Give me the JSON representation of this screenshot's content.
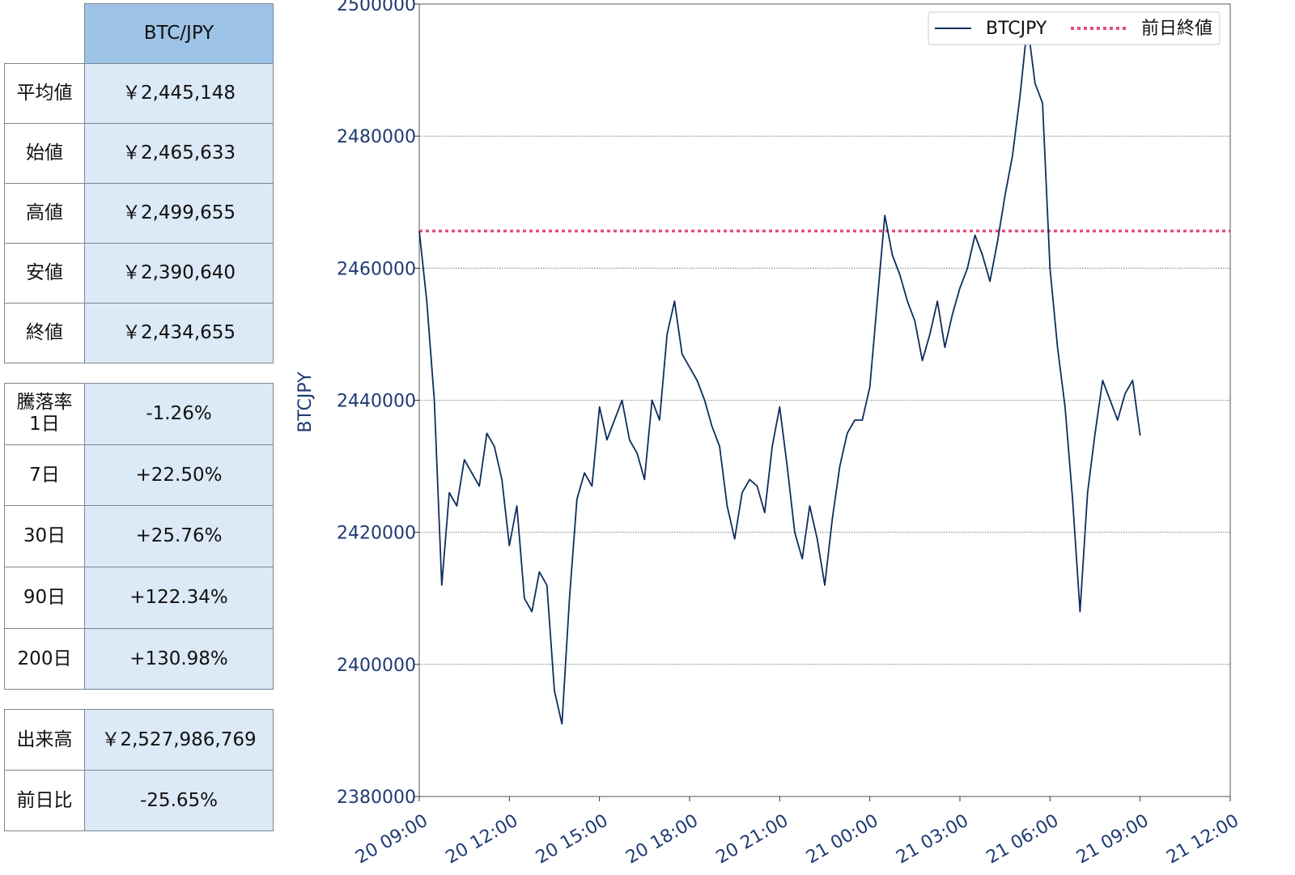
{
  "table_summary": {
    "header": "BTC/JPY",
    "rows": [
      {
        "label": "平均値",
        "value": "￥2,445,148"
      },
      {
        "label": "始値",
        "value": "￥2,465,633"
      },
      {
        "label": "高値",
        "value": "￥2,499,655"
      },
      {
        "label": "安値",
        "value": "￥2,390,640"
      },
      {
        "label": "終値",
        "value": "￥2,434,655"
      }
    ]
  },
  "table_change": {
    "rows": [
      {
        "label_line1": "騰落率",
        "label_line2": "1日",
        "value": "-1.26%"
      },
      {
        "label": "7日",
        "value": "+22.50%"
      },
      {
        "label": "30日",
        "value": "+25.76%"
      },
      {
        "label": "90日",
        "value": "+122.34%"
      },
      {
        "label": "200日",
        "value": "+130.98%"
      }
    ]
  },
  "table_volume": {
    "rows": [
      {
        "label": "出来高",
        "value": "￥2,527,986,769"
      },
      {
        "label": "前日比",
        "value": "-25.65%"
      }
    ]
  },
  "chart_data": {
    "type": "line",
    "title": "",
    "xlabel": "",
    "ylabel": "BTCJPY",
    "xlim": [
      "20 09:00",
      "21 12:00"
    ],
    "ylim": [
      2380000,
      2500000
    ],
    "yticks": [
      2380000,
      2400000,
      2420000,
      2440000,
      2460000,
      2480000,
      2500000
    ],
    "xticks": [
      "20 09:00",
      "20 12:00",
      "20 15:00",
      "20 18:00",
      "20 21:00",
      "21 00:00",
      "21 03:00",
      "21 06:00",
      "21 09:00",
      "21 12:00"
    ],
    "grid": "horizontal",
    "legend_position": "top-right",
    "axis_color": "#1f3b73",
    "series": [
      {
        "name": "BTCJPY",
        "color": "#0d2e5c",
        "x": [
          "20 09:00",
          "20 09:15",
          "20 09:30",
          "20 09:45",
          "20 10:00",
          "20 10:15",
          "20 10:30",
          "20 10:45",
          "20 11:00",
          "20 11:15",
          "20 11:30",
          "20 11:45",
          "20 12:00",
          "20 12:15",
          "20 12:30",
          "20 12:45",
          "20 13:00",
          "20 13:15",
          "20 13:30",
          "20 13:45",
          "20 14:00",
          "20 14:15",
          "20 14:30",
          "20 14:45",
          "20 15:00",
          "20 15:15",
          "20 15:30",
          "20 15:45",
          "20 16:00",
          "20 16:15",
          "20 16:30",
          "20 16:45",
          "20 17:00",
          "20 17:15",
          "20 17:30",
          "20 17:45",
          "20 18:00",
          "20 18:15",
          "20 18:30",
          "20 18:45",
          "20 19:00",
          "20 19:15",
          "20 19:30",
          "20 19:45",
          "20 20:00",
          "20 20:15",
          "20 20:30",
          "20 20:45",
          "20 21:00",
          "20 21:15",
          "20 21:30",
          "20 21:45",
          "20 22:00",
          "20 22:15",
          "20 22:30",
          "20 22:45",
          "20 23:00",
          "20 23:15",
          "20 23:30",
          "20 23:45",
          "21 00:00",
          "21 00:15",
          "21 00:30",
          "21 00:45",
          "21 01:00",
          "21 01:15",
          "21 01:30",
          "21 01:45",
          "21 02:00",
          "21 02:15",
          "21 02:30",
          "21 02:45",
          "21 03:00",
          "21 03:15",
          "21 03:30",
          "21 03:45",
          "21 04:00",
          "21 04:15",
          "21 04:30",
          "21 04:45",
          "21 05:00",
          "21 05:15",
          "21 05:30",
          "21 05:45",
          "21 06:00",
          "21 06:15",
          "21 06:30",
          "21 06:45",
          "21 07:00",
          "21 07:15",
          "21 07:30",
          "21 07:45",
          "21 08:00",
          "21 08:15",
          "21 08:30",
          "21 08:45",
          "21 09:00"
        ],
        "values": [
          2465633,
          2455000,
          2440000,
          2412000,
          2426000,
          2424000,
          2431000,
          2429000,
          2427000,
          2435000,
          2433000,
          2428000,
          2418000,
          2424000,
          2410000,
          2408000,
          2414000,
          2412000,
          2396000,
          2391000,
          2410000,
          2425000,
          2429000,
          2427000,
          2439000,
          2434000,
          2437000,
          2440000,
          2434000,
          2432000,
          2428000,
          2440000,
          2437000,
          2450000,
          2455000,
          2447000,
          2445000,
          2443000,
          2440000,
          2436000,
          2433000,
          2424000,
          2419000,
          2426000,
          2428000,
          2427000,
          2423000,
          2433000,
          2439000,
          2430000,
          2420000,
          2416000,
          2424000,
          2419000,
          2412000,
          2422000,
          2430000,
          2435000,
          2437000,
          2437000,
          2442000,
          2455000,
          2468000,
          2462000,
          2459000,
          2455000,
          2452000,
          2446000,
          2450000,
          2455000,
          2448000,
          2453000,
          2457000,
          2460000,
          2465000,
          2462000,
          2458000,
          2464000,
          2471000,
          2477000,
          2486000,
          2497000,
          2488000,
          2485000,
          2460000,
          2448000,
          2439000,
          2425000,
          2408000,
          2426000,
          2435000,
          2443000,
          2440000,
          2437000,
          2441000,
          2443000,
          2434655
        ]
      },
      {
        "name": "前日終値",
        "color": "#e0507a",
        "style": "dotted",
        "value": 2465633
      }
    ]
  }
}
